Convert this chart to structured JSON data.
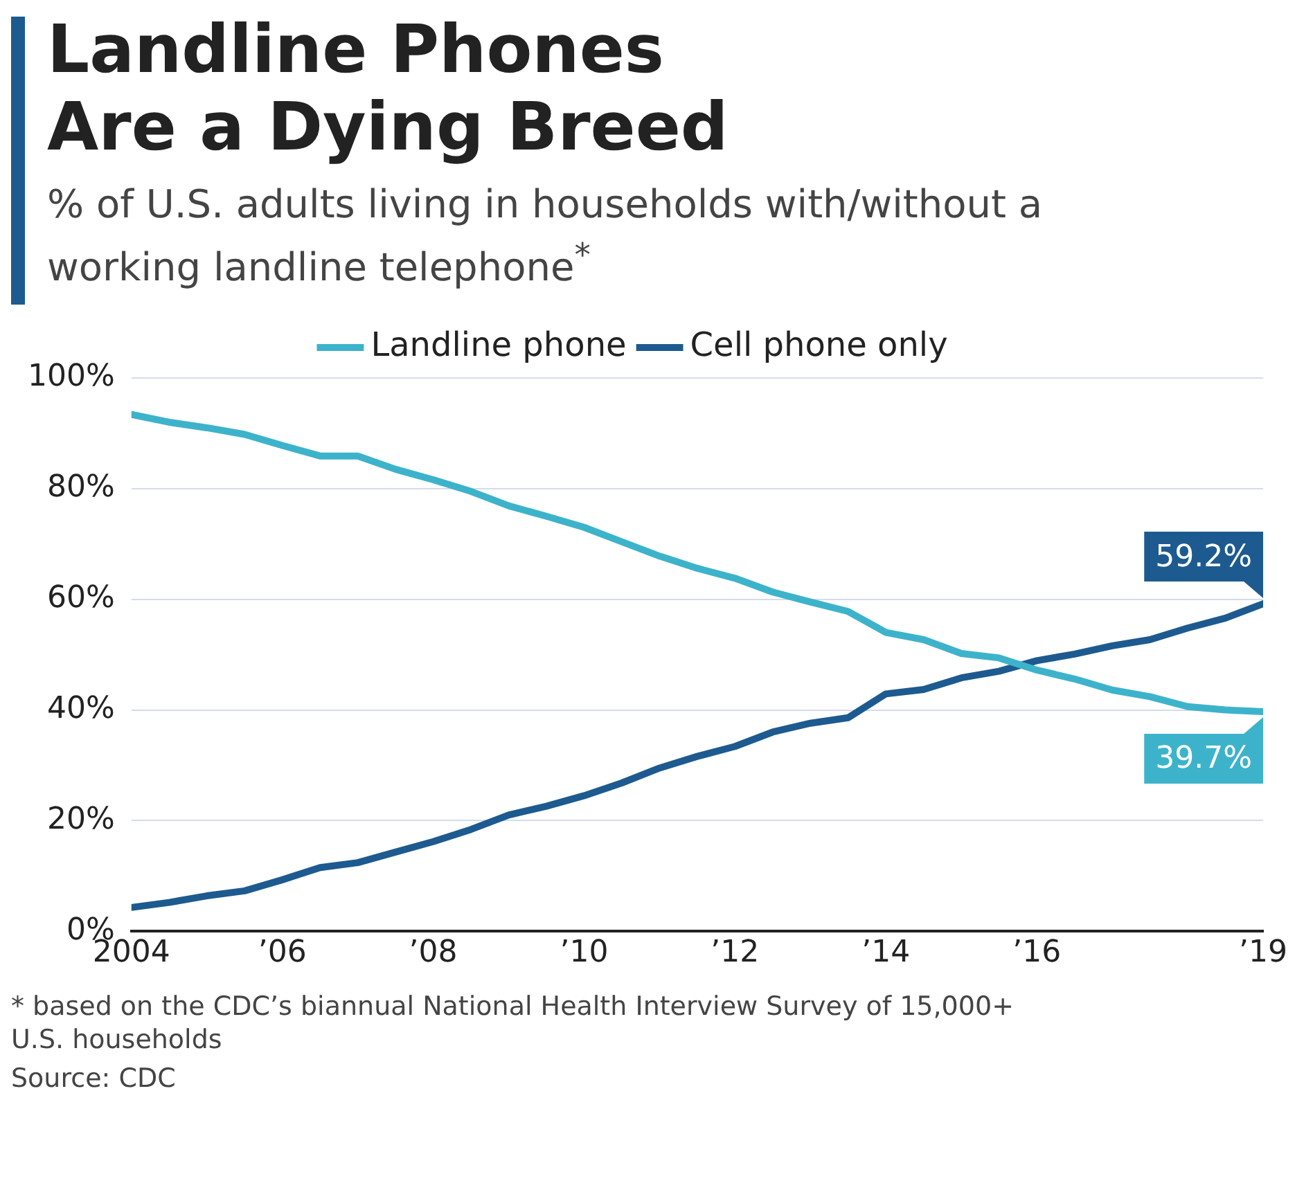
{
  "chart_data": {
    "type": "line",
    "title": "Landline Phones Are a Dying Breed",
    "subtitle": "% of U.S. adults living in households with/without a working landline telephone$^{*}$",
    "x": [
      2004,
      2004.5,
      2005,
      2005.5,
      2006,
      2006.5,
      2007,
      2007.5,
      2008,
      2008.5,
      2009,
      2009.5,
      2010,
      2010.5,
      2011,
      2011.5,
      2012,
      2012.5,
      2013,
      2013.5,
      2014,
      2014.5,
      2015,
      2015.5,
      2016,
      2016.5,
      2017,
      2017.5,
      2018,
      2018.5,
      2019
    ],
    "series": [
      {
        "name": "Landline phone",
        "color": "#3db3cb",
        "values": [
          93.4,
          92.0,
          91.0,
          89.8,
          87.8,
          85.9,
          85.9,
          83.5,
          81.6,
          79.5,
          76.9,
          75.0,
          73.0,
          70.4,
          67.8,
          65.6,
          63.8,
          61.3,
          59.5,
          57.8,
          54.0,
          52.7,
          50.2,
          49.4,
          47.2,
          45.6,
          43.6,
          42.4,
          40.6,
          40.0,
          39.7
        ],
        "value_labels": [
          null,
          null,
          null,
          null,
          null,
          null,
          null,
          null,
          null,
          null,
          null,
          null,
          null,
          null,
          null,
          null,
          null,
          null,
          null,
          null,
          null,
          null,
          null,
          null,
          null,
          null,
          null,
          null,
          null,
          null,
          "39.7%"
        ]
      },
      {
        "name": "Cell phone only",
        "color": "#1d5a8f",
        "values": [
          4.3,
          5.2,
          6.4,
          7.3,
          9.3,
          11.5,
          12.4,
          14.3,
          16.2,
          18.4,
          21.0,
          22.6,
          24.5,
          26.8,
          29.5,
          31.6,
          33.4,
          36.0,
          37.6,
          38.6,
          42.9,
          43.7,
          45.8,
          47.0,
          48.9,
          50.1,
          51.6,
          52.7,
          54.8,
          56.6,
          59.2
        ],
        "value_labels": [
          null,
          null,
          null,
          null,
          null,
          null,
          null,
          null,
          null,
          null,
          null,
          null,
          null,
          null,
          null,
          null,
          null,
          null,
          null,
          null,
          null,
          null,
          null,
          null,
          null,
          null,
          null,
          null,
          null,
          null,
          "59.2%"
        ]
      }
    ],
    "xlim": [
      2004,
      2019
    ],
    "xticks": [
      {
        "value": 2004,
        "label": "2004"
      },
      {
        "value": 2006,
        "label": "’06"
      },
      {
        "value": 2008,
        "label": "’08"
      },
      {
        "value": 2010,
        "label": "’10"
      },
      {
        "value": 2012,
        "label": "’12"
      },
      {
        "value": 2014,
        "label": "’14"
      },
      {
        "value": 2016,
        "label": "’16"
      },
      {
        "value": 2019,
        "label": "’19"
      }
    ],
    "ylim": [
      0,
      100
    ],
    "yticks": [
      {
        "value": 0,
        "label": "0%"
      },
      {
        "value": 20,
        "label": "20%"
      },
      {
        "value": 40,
        "label": "40%"
      },
      {
        "value": 60,
        "label": "60%"
      },
      {
        "value": 80,
        "label": "80%"
      },
      {
        "value": 100,
        "label": "100%"
      }
    ],
    "grid": "y",
    "legend": "top",
    "marker": "none",
    "line_style": "solid",
    "annotations": [
      "* based on the CDC’s biannual National Health Interview Survey of 15,000+ U.S. households",
      "Source: CDC"
    ]
  }
}
